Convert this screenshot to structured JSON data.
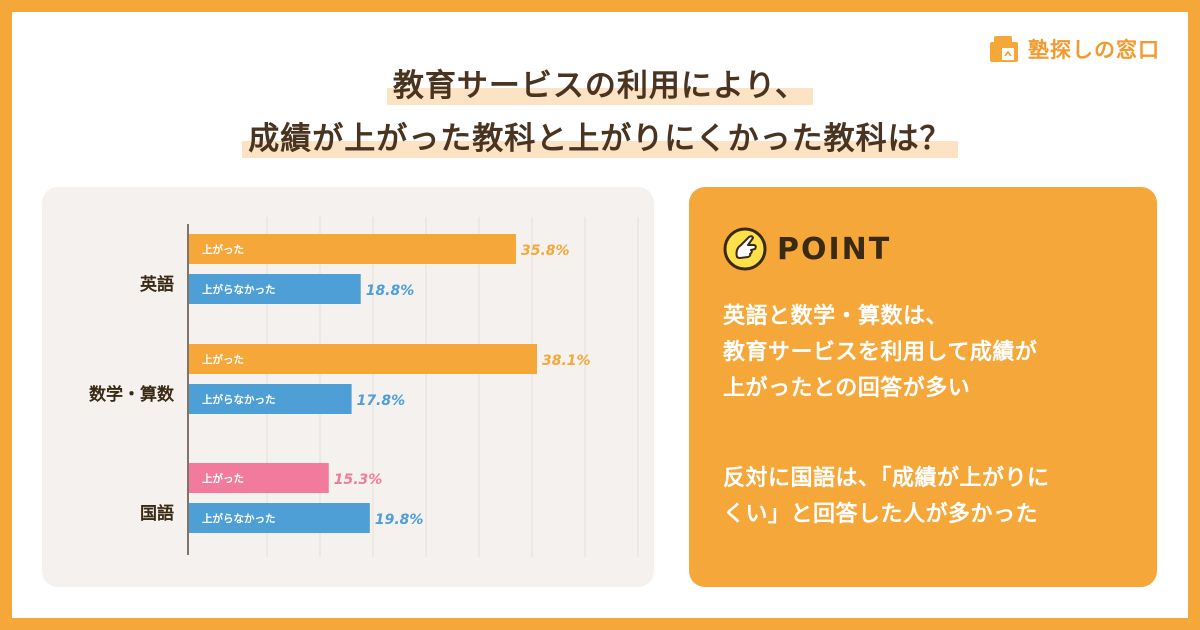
{
  "logo": {
    "text": "塾探しの窓口"
  },
  "title": {
    "line1": "教育サービスの利用により、",
    "line2": "成績が上がった教科と上がりにくかった教科は？"
  },
  "point": {
    "label": "POINT",
    "paragraph1": "英語と数学・算数は、\n教育サービスを利用して成績が\n上がったとの回答が多い",
    "paragraph2": "反対に国語は、「成績が上がりに\nくい」と回答した人が多かった"
  },
  "colors": {
    "orange": "#F6A73A",
    "blue": "#4D9FD6",
    "pink": "#F27A9C",
    "panel_bg": "#F4F1EE"
  },
  "chart_data": {
    "type": "bar",
    "orientation": "horizontal",
    "unit": "%",
    "xlim": [
      0,
      50
    ],
    "categories": [
      {
        "name": "英語",
        "bars": [
          {
            "label": "上がった",
            "value": 35.8,
            "color": "#F6A73A"
          },
          {
            "label": "上がらなかった",
            "value": 18.8,
            "color": "#4D9FD6"
          }
        ]
      },
      {
        "name": "数学・算数",
        "bars": [
          {
            "label": "上がった",
            "value": 38.1,
            "color": "#F6A73A"
          },
          {
            "label": "上がらなかった",
            "value": 17.8,
            "color": "#4D9FD6"
          }
        ]
      },
      {
        "name": "国語",
        "bars": [
          {
            "label": "上がった",
            "value": 15.3,
            "color": "#F27A9C"
          },
          {
            "label": "上がらなかった",
            "value": 19.8,
            "color": "#4D9FD6"
          }
        ]
      }
    ]
  }
}
